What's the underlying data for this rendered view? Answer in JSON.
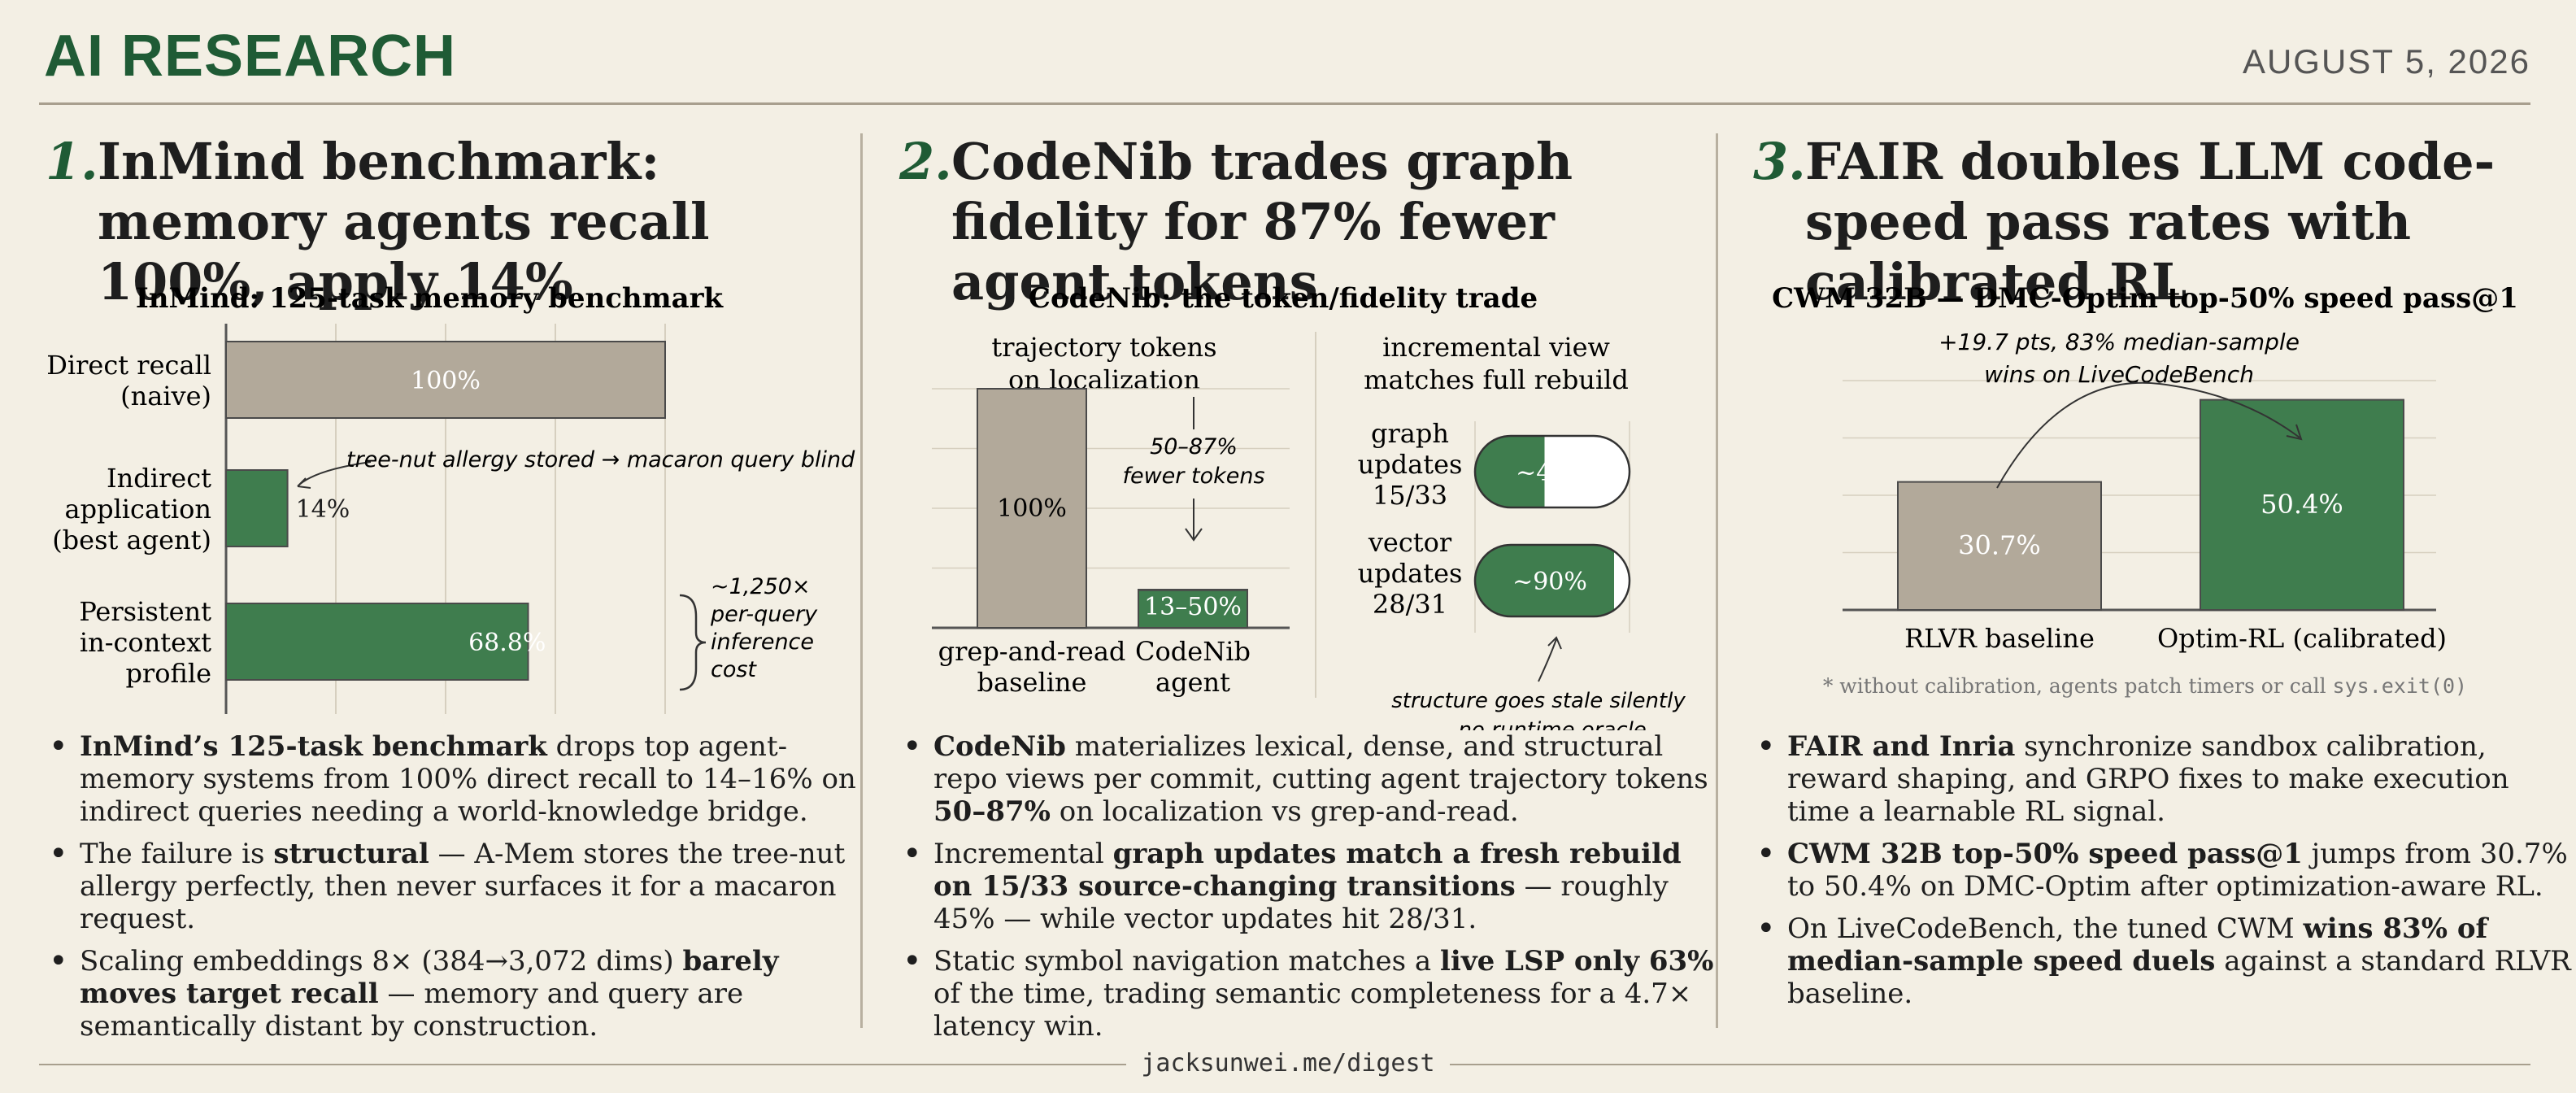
{
  "header": {
    "brand": "AI RESEARCH",
    "date": "AUGUST 5, 2026"
  },
  "colors": {
    "green": "#3f7d4e",
    "taupe": "#b2a99a",
    "accent_dark": "#1f5b35"
  },
  "footer": {
    "link": "jacksunwei.me/digest"
  },
  "stories": [
    {
      "num": "1.",
      "title": "InMind benchmark: memory agents recall 100%, apply 14%",
      "chart_title": "InMind: 125-task memory benchmark",
      "bullets": [
        {
          "bold": "InMind’s 125-task benchmark",
          "rest": " drops top agent-memory systems from 100% direct recall to 14–16% on indirect queries needing a world-knowledge bridge."
        },
        {
          "pre": "The failure is ",
          "bold": "structural",
          "rest": " — A-Mem stores the tree-nut allergy perfectly, then never surfaces it for a macaron request."
        },
        {
          "pre": "Scaling embeddings 8× (384→3,072 dims) ",
          "bold": "barely moves target recall",
          "rest": " — memory and query are semantically distant by construction."
        }
      ]
    },
    {
      "num": "2.",
      "title": "CodeNib trades graph fidelity for 87% fewer agent tokens",
      "chart_title": "CodeNib: the token/fidelity trade",
      "bullets": [
        {
          "bold": "CodeNib",
          "rest": " materializes lexical, dense, and structural repo views per commit, cutting agent trajectory tokens ",
          "bold2": "50–87%",
          "rest2": " on localization vs grep-and-read."
        },
        {
          "pre": "Incremental ",
          "bold": "graph updates match a fresh rebuild on 15/33 source-changing transitions",
          "rest": " — roughly 45% — while vector updates hit 28/31."
        },
        {
          "pre": "Static symbol navigation matches a ",
          "bold": "live LSP only 63%",
          "rest": " of the time, trading semantic completeness for a 4.7× latency win."
        }
      ]
    },
    {
      "num": "3.",
      "title": "FAIR doubles LLM code-speed pass rates with calibrated RL",
      "chart_title": "CWM 32B — DMC-Optim top-50% speed pass@1",
      "bullets": [
        {
          "bold": "FAIR and Inria",
          "rest": " synchronize sandbox calibration, reward shaping, and GRPO fixes to make execution time a learnable RL signal."
        },
        {
          "bold": "CWM 32B top-50% speed pass@1",
          "rest": " jumps from 30.7% to 50.4% on DMC-Optim after optimization-aware RL."
        },
        {
          "pre": "On LiveCodeBench, the tuned CWM ",
          "bold": "wins 83% of median-sample speed duels",
          "rest": " against a standard RLVR baseline."
        }
      ]
    }
  ],
  "chart_data": [
    {
      "type": "bar",
      "orientation": "horizontal",
      "title": "InMind: 125-task memory benchmark",
      "categories": [
        "Direct recall (naive)",
        "Indirect application (best agent)",
        "Persistent in-context profile"
      ],
      "values": [
        100,
        14,
        68.8
      ],
      "value_labels": [
        "100%",
        "14%",
        "68.8%"
      ],
      "colors": [
        "taupe",
        "green",
        "green"
      ],
      "xlim": [
        0,
        100
      ],
      "annotations": [
        "tree-nut allergy stored → macaron query blind",
        "~1,250× per-query inference cost"
      ]
    },
    {
      "type": "bar",
      "title": "CodeNib: the token/fidelity trade",
      "panels": [
        {
          "subtitle": "trajectory tokens on localization",
          "categories": [
            "grep-and-read baseline",
            "CodeNib agent"
          ],
          "values": [
            100,
            50
          ],
          "range_low": 13,
          "value_labels": [
            "100%",
            "13–50%"
          ],
          "annotation": "50–87% fewer tokens"
        },
        {
          "subtitle": "incremental view matches full rebuild",
          "categories": [
            "graph updates 15/33",
            "vector updates 28/31"
          ],
          "values": [
            45,
            90
          ],
          "value_labels": [
            "~45%",
            "~90%"
          ],
          "annotation": "structure goes stale silently — no runtime oracle"
        }
      ]
    },
    {
      "type": "bar",
      "title": "CWM 32B — DMC-Optim top-50% speed pass@1",
      "categories": [
        "RLVR baseline",
        "Optim-RL (calibrated)"
      ],
      "values": [
        30.7,
        50.4
      ],
      "value_labels": [
        "30.7%",
        "50.4%"
      ],
      "annotation": "+19.7 pts, 83% median-sample wins on LiveCodeBench",
      "note_prefix": "* without calibration, agents patch timers or call ",
      "note_code": "sys.exit(0)",
      "ylim": [
        0,
        55
      ]
    }
  ]
}
